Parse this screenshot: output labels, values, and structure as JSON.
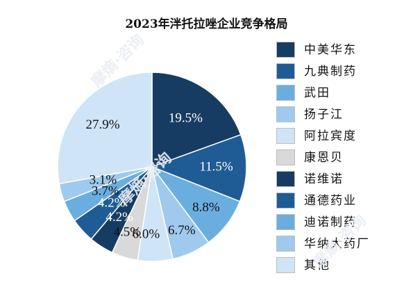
{
  "chart_data": {
    "type": "pie",
    "title": "2023年泮托拉唑企业竞争格局",
    "start_angle_deg": 0,
    "direction": "clockwise",
    "slices": [
      {
        "label": "中美华东",
        "value": 19.5,
        "value_label": "19.5%",
        "color": "#173c63",
        "label_color": "#ffffff"
      },
      {
        "label": "九典制药",
        "value": 11.5,
        "value_label": "11.5%",
        "color": "#1f5c95",
        "label_color": "#ffffff"
      },
      {
        "label": "武田",
        "value": 8.8,
        "value_label": "8.8%",
        "color": "#6aaee0",
        "label_color": "#111111"
      },
      {
        "label": "扬子江",
        "value": 6.7,
        "value_label": "6.7%",
        "color": "#9fcaee",
        "label_color": "#111111"
      },
      {
        "label": "阿拉宾度",
        "value": 6.0,
        "value_label": "6.0%",
        "color": "#cfe4f6",
        "label_color": "#111111"
      },
      {
        "label": "康恩贝",
        "value": 4.5,
        "value_label": "4.5%",
        "color": "#d9d9d9",
        "label_color": "#111111"
      },
      {
        "label": "诺维诺",
        "value": 4.2,
        "value_label": "4.2%",
        "color": "#173c63",
        "label_color": "#ffffff"
      },
      {
        "label": "通德药业",
        "value": 4.2,
        "value_label": "4.2%",
        "color": "#1f5c95",
        "label_color": "#ffffff"
      },
      {
        "label": "迪诺制药",
        "value": 3.7,
        "value_label": "3.7%",
        "color": "#6aaee0",
        "label_color": "#111111"
      },
      {
        "label": "华纳大药厂",
        "value": 3.1,
        "value_label": "3.1%",
        "color": "#9fcaee",
        "label_color": "#111111"
      },
      {
        "label": "其他",
        "value": 27.9,
        "value_label": "27.9%",
        "color": "#cfe4f6",
        "label_color": "#111111"
      }
    ],
    "legend_position": "right"
  },
  "watermark": {
    "text": "摩熵·咨询"
  }
}
